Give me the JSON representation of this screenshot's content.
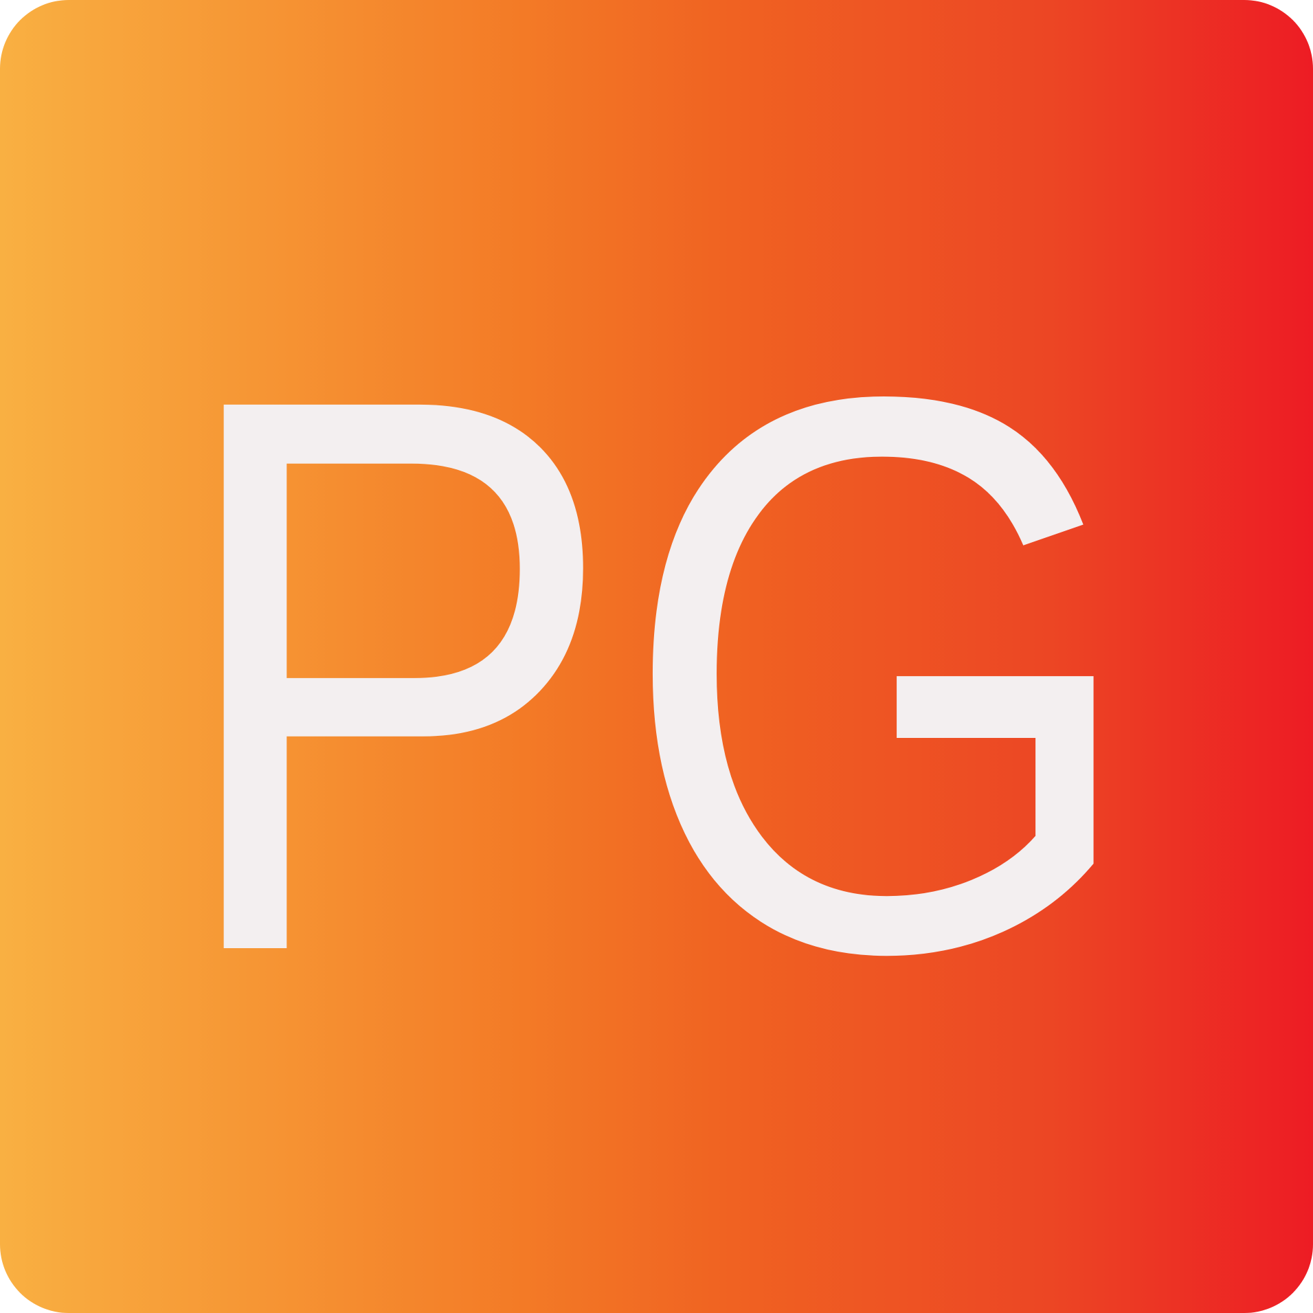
{
  "logo": {
    "monogram": "PG",
    "colors": {
      "gradient_start": "#f9b042",
      "gradient_mid": "#f06322",
      "gradient_end": "#ed1c24",
      "letter": "#f3eff0"
    }
  }
}
